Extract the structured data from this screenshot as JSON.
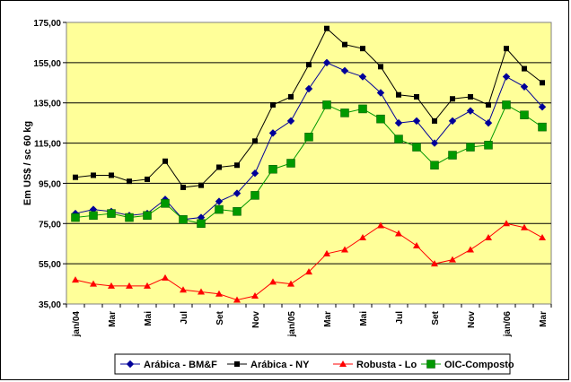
{
  "chart_data": {
    "type": "line",
    "ylabel": "Em US$ / sc 60 kg",
    "ylim": [
      35,
      175
    ],
    "yticks": [
      "35,00",
      "55,00",
      "75,00",
      "95,00",
      "115,00",
      "135,00",
      "155,00",
      "175,00"
    ],
    "ytick_values": [
      35,
      55,
      75,
      95,
      115,
      135,
      155,
      175
    ],
    "xtick_labels": [
      "jan/04",
      "Mar",
      "Mai",
      "Jul",
      "Set",
      "Nov",
      "jan/05",
      "Mar",
      "Mai",
      "Jul",
      "Set",
      "Nov",
      "jan/06",
      "Mar"
    ],
    "x": [
      "jan/04",
      "fev/04",
      "mar/04",
      "abr/04",
      "mai/04",
      "jun/04",
      "jul/04",
      "ago/04",
      "set/04",
      "out/04",
      "nov/04",
      "dez/04",
      "jan/05",
      "fev/05",
      "mar/05",
      "abr/05",
      "mai/05",
      "jun/05",
      "jul/05",
      "ago/05",
      "set/05",
      "out/05",
      "nov/05",
      "dez/05",
      "jan/06",
      "fev/06",
      "mar/06"
    ],
    "grid": true,
    "legend_position": "bottom",
    "series": [
      {
        "name": "Arábica - BM&F",
        "color": "#000099",
        "marker": "diamond",
        "values": [
          80,
          82,
          81,
          79,
          80,
          87,
          77,
          78,
          86,
          90,
          100,
          120,
          126,
          142,
          155,
          151,
          148,
          140,
          125,
          126,
          115,
          126,
          131,
          125,
          148,
          143,
          133
        ]
      },
      {
        "name": "Arábica - NY",
        "color": "#000000",
        "marker": "square",
        "values": [
          98,
          99,
          99,
          96,
          97,
          106,
          93,
          94,
          103,
          104,
          116,
          134,
          138,
          154,
          172,
          164,
          162,
          153,
          139,
          138,
          126,
          137,
          138,
          134,
          162,
          152,
          145
        ]
      },
      {
        "name": "Robusta - Lo",
        "color": "#ff0000",
        "marker": "triangle",
        "values": [
          47,
          45,
          44,
          44,
          44,
          48,
          42,
          41,
          40,
          37,
          39,
          46,
          45,
          51,
          60,
          62,
          68,
          74,
          70,
          64,
          55,
          57,
          62,
          68,
          75,
          73,
          68
        ]
      },
      {
        "name": "OIC-Composto",
        "color": "#009900",
        "marker": "square-lg",
        "values": [
          78,
          79,
          80,
          78,
          79,
          85,
          77,
          75,
          82,
          81,
          89,
          102,
          105,
          118,
          134,
          130,
          132,
          127,
          117,
          113,
          104,
          109,
          113,
          114,
          134,
          129,
          123
        ]
      }
    ]
  }
}
